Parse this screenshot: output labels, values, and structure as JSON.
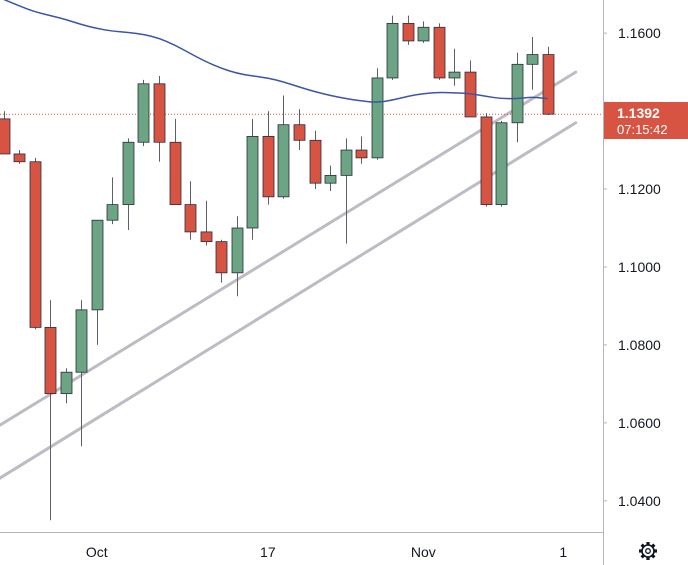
{
  "chart_data": {
    "type": "candlestick",
    "title": "",
    "xlabel": "",
    "ylabel": "",
    "ylim": [
      1.032,
      1.1685
    ],
    "y_ticks": [
      "1.1600",
      "1.1400",
      "1.1200",
      "1.1000",
      "1.0800",
      "1.0600",
      "1.0400"
    ],
    "x_ticks": [
      {
        "label": "Oct",
        "index": 6
      },
      {
        "label": "17",
        "index": 17
      },
      {
        "label": "Nov",
        "index": 27
      },
      {
        "label": "1",
        "index": 36
      }
    ],
    "last_price": {
      "label": "1.1392",
      "value": 1.1392,
      "countdown": "07:15:42"
    },
    "candles": [
      {
        "o": 1.138,
        "h": 1.14,
        "l": 1.129,
        "c": 1.129
      },
      {
        "o": 1.129,
        "h": 1.13,
        "l": 1.1265,
        "c": 1.127
      },
      {
        "o": 1.127,
        "h": 1.128,
        "l": 1.084,
        "c": 1.0845
      },
      {
        "o": 1.0845,
        "h": 1.0915,
        "l": 1.035,
        "c": 1.0675
      },
      {
        "o": 1.0675,
        "h": 1.074,
        "l": 1.065,
        "c": 1.073
      },
      {
        "o": 1.073,
        "h": 1.0915,
        "l": 1.054,
        "c": 1.089
      },
      {
        "o": 1.089,
        "h": 1.112,
        "l": 1.08,
        "c": 1.112
      },
      {
        "o": 1.112,
        "h": 1.123,
        "l": 1.111,
        "c": 1.116
      },
      {
        "o": 1.116,
        "h": 1.133,
        "l": 1.1095,
        "c": 1.132
      },
      {
        "o": 1.132,
        "h": 1.148,
        "l": 1.131,
        "c": 1.147
      },
      {
        "o": 1.147,
        "h": 1.149,
        "l": 1.127,
        "c": 1.132
      },
      {
        "o": 1.132,
        "h": 1.138,
        "l": 1.116,
        "c": 1.116
      },
      {
        "o": 1.116,
        "h": 1.122,
        "l": 1.107,
        "c": 1.109
      },
      {
        "o": 1.109,
        "h": 1.117,
        "l": 1.1055,
        "c": 1.1065
      },
      {
        "o": 1.1065,
        "h": 1.107,
        "l": 1.096,
        "c": 1.0985
      },
      {
        "o": 1.0985,
        "h": 1.113,
        "l": 1.0925,
        "c": 1.11
      },
      {
        "o": 1.11,
        "h": 1.138,
        "l": 1.107,
        "c": 1.1335
      },
      {
        "o": 1.1335,
        "h": 1.14,
        "l": 1.116,
        "c": 1.118
      },
      {
        "o": 1.118,
        "h": 1.144,
        "l": 1.1175,
        "c": 1.1365
      },
      {
        "o": 1.1365,
        "h": 1.1405,
        "l": 1.13,
        "c": 1.1325
      },
      {
        "o": 1.1325,
        "h": 1.135,
        "l": 1.12,
        "c": 1.1215
      },
      {
        "o": 1.1215,
        "h": 1.126,
        "l": 1.1195,
        "c": 1.1235
      },
      {
        "o": 1.1235,
        "h": 1.133,
        "l": 1.106,
        "c": 1.13
      },
      {
        "o": 1.13,
        "h": 1.1335,
        "l": 1.1265,
        "c": 1.128
      },
      {
        "o": 1.128,
        "h": 1.151,
        "l": 1.1275,
        "c": 1.1485
      },
      {
        "o": 1.1485,
        "h": 1.1645,
        "l": 1.148,
        "c": 1.1625
      },
      {
        "o": 1.1625,
        "h": 1.1645,
        "l": 1.157,
        "c": 1.158
      },
      {
        "o": 1.158,
        "h": 1.163,
        "l": 1.1575,
        "c": 1.1615
      },
      {
        "o": 1.1615,
        "h": 1.1625,
        "l": 1.148,
        "c": 1.1485
      },
      {
        "o": 1.1485,
        "h": 1.156,
        "l": 1.1465,
        "c": 1.15
      },
      {
        "o": 1.15,
        "h": 1.153,
        "l": 1.1385,
        "c": 1.1385
      },
      {
        "o": 1.1385,
        "h": 1.1395,
        "l": 1.1155,
        "c": 1.116
      },
      {
        "o": 1.116,
        "h": 1.1375,
        "l": 1.1155,
        "c": 1.137
      },
      {
        "o": 1.137,
        "h": 1.155,
        "l": 1.132,
        "c": 1.152
      },
      {
        "o": 1.152,
        "h": 1.159,
        "l": 1.1455,
        "c": 1.1545
      },
      {
        "o": 1.1545,
        "h": 1.1565,
        "l": 1.139,
        "c": 1.1392
      }
    ],
    "moving_average": [
      {
        "i": -0.5,
        "v": 1.1695
      },
      {
        "i": 1,
        "v": 1.167
      },
      {
        "i": 2,
        "v": 1.1655
      },
      {
        "i": 3,
        "v": 1.1645
      },
      {
        "i": 4,
        "v": 1.1635
      },
      {
        "i": 5,
        "v": 1.1622
      },
      {
        "i": 6,
        "v": 1.1612
      },
      {
        "i": 7,
        "v": 1.1605
      },
      {
        "i": 8,
        "v": 1.1602
      },
      {
        "i": 9,
        "v": 1.1597
      },
      {
        "i": 10,
        "v": 1.1587
      },
      {
        "i": 11,
        "v": 1.157
      },
      {
        "i": 12,
        "v": 1.1548
      },
      {
        "i": 13,
        "v": 1.1527
      },
      {
        "i": 14,
        "v": 1.151
      },
      {
        "i": 15,
        "v": 1.1497
      },
      {
        "i": 16,
        "v": 1.149
      },
      {
        "i": 17,
        "v": 1.1485
      },
      {
        "i": 18,
        "v": 1.1475
      },
      {
        "i": 19,
        "v": 1.1462
      },
      {
        "i": 20,
        "v": 1.145
      },
      {
        "i": 21,
        "v": 1.144
      },
      {
        "i": 22,
        "v": 1.1432
      },
      {
        "i": 23,
        "v": 1.1426
      },
      {
        "i": 24,
        "v": 1.1422
      },
      {
        "i": 25,
        "v": 1.1428
      },
      {
        "i": 26,
        "v": 1.1438
      },
      {
        "i": 27,
        "v": 1.1445
      },
      {
        "i": 28,
        "v": 1.1448
      },
      {
        "i": 29,
        "v": 1.1447
      },
      {
        "i": 30,
        "v": 1.1445
      },
      {
        "i": 31,
        "v": 1.1438
      },
      {
        "i": 32,
        "v": 1.1432
      },
      {
        "i": 33,
        "v": 1.1432
      },
      {
        "i": 34,
        "v": 1.1436
      },
      {
        "i": 35,
        "v": 1.1432
      }
    ],
    "trendlines": [
      {
        "from": {
          "i": -1.5,
          "v": 1.0563
        },
        "to": {
          "i": 36.8,
          "v": 1.15
        }
      },
      {
        "from": {
          "i": -1.5,
          "v": 1.0427
        },
        "to": {
          "i": 36.8,
          "v": 1.137
        }
      }
    ],
    "grid": false,
    "legend": "none",
    "colors": {
      "up": "#6ba583",
      "down": "#d75442",
      "wick": "#5d606b",
      "moving_average": "#3c55a8",
      "trendline": "#bdbcc4",
      "price_label_bg": "#d75442",
      "price_line": "#d75442",
      "text": "#131722",
      "axis_line": "#b2b5be"
    }
  },
  "axis_button": {
    "icon": "settings-gear-icon"
  }
}
